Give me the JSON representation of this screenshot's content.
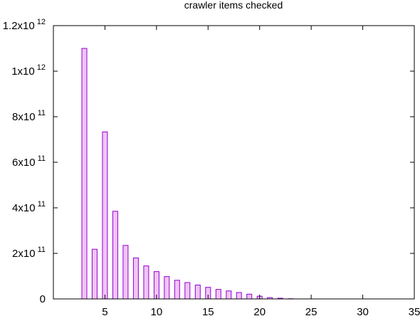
{
  "chart_data": {
    "type": "bar",
    "title": "crawler items checked",
    "xlabel": "",
    "ylabel": "",
    "xlim": [
      0,
      35
    ],
    "ylim": [
      0,
      1200000000000
    ],
    "grid": false,
    "x_ticks": [
      {
        "value": 5,
        "label": "5"
      },
      {
        "value": 10,
        "label": "10"
      },
      {
        "value": 15,
        "label": "15"
      },
      {
        "value": 20,
        "label": "20"
      },
      {
        "value": 25,
        "label": "25"
      },
      {
        "value": 30,
        "label": "30"
      },
      {
        "value": 35,
        "label": "35"
      }
    ],
    "y_ticks": [
      {
        "value": 0,
        "mantissa": "0",
        "exponent": ""
      },
      {
        "value": 200000000000,
        "mantissa": "2x10",
        "exponent": "11"
      },
      {
        "value": 400000000000,
        "mantissa": "4x10",
        "exponent": "11"
      },
      {
        "value": 600000000000,
        "mantissa": "6x10",
        "exponent": "11"
      },
      {
        "value": 800000000000,
        "mantissa": "8x10",
        "exponent": "11"
      },
      {
        "value": 1000000000000,
        "mantissa": "1x10",
        "exponent": "12"
      },
      {
        "value": 1200000000000,
        "mantissa": "1.2x10",
        "exponent": "12"
      }
    ],
    "x": [
      3,
      4,
      5,
      6,
      7,
      8,
      9,
      10,
      11,
      12,
      13,
      14,
      15,
      16,
      17,
      18,
      19,
      20,
      21,
      22,
      23
    ],
    "values": [
      1100000000000,
      218000000000,
      733000000000,
      385000000000,
      235000000000,
      180000000000,
      145000000000,
      120000000000,
      98000000000,
      82000000000,
      72000000000,
      61000000000,
      51000000000,
      42000000000,
      35000000000,
      28000000000,
      21000000000,
      12000000000,
      6000000000,
      3000000000,
      1000000000
    ],
    "bar_fill": "#f0c4f4",
    "bar_stroke": "#9400d3"
  }
}
